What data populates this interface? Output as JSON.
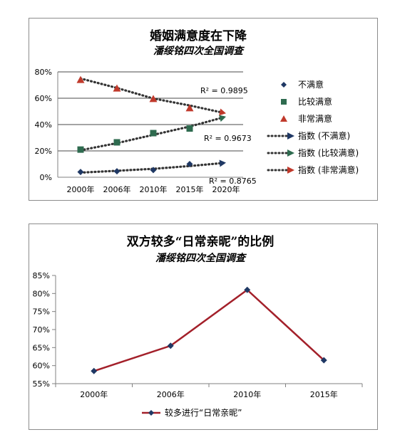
{
  "charts": [
    {
      "type": "scatter",
      "title": "婚姻满意度在下降",
      "subtitle": "潘绥铭四次全国调查",
      "categories": [
        "2000年",
        "2006年",
        "2010年",
        "2015年",
        "2020年"
      ],
      "ylim": [
        0,
        80
      ],
      "yticks": [
        "0%",
        "20%",
        "40%",
        "60%",
        "80%"
      ],
      "grid": true,
      "legend_position": "right",
      "series": [
        {
          "name": "不满意",
          "marker": "diamond",
          "color": "#1f3864",
          "values": [
            4,
            4.5,
            5.5,
            10,
            null
          ]
        },
        {
          "name": "比较满意",
          "marker": "square",
          "color": "#2e6b4f",
          "values": [
            21,
            26.5,
            33.5,
            37,
            null
          ]
        },
        {
          "name": "非常满意",
          "marker": "triangle",
          "color": "#c0392b",
          "values": [
            74,
            67.5,
            59.5,
            52.5,
            null
          ]
        }
      ],
      "trendlines": [
        {
          "name": "指数 (不满意)",
          "color": "#1f3864",
          "values": [
            3.5,
            4.9,
            6.4,
            8.5,
            11
          ],
          "r2": "R² = 0.8765",
          "r2_label": "R² = 0.8765"
        },
        {
          "name": "指数 (比较满意)",
          "color": "#2e6b4f",
          "values": [
            20.5,
            25.9,
            32.2,
            38.5,
            46
          ],
          "r2": "R² = 0.9673",
          "r2_label": "R² = 0.9673"
        },
        {
          "name": "指数 (非常满意)",
          "color": "#c0392b",
          "values": [
            75,
            67.8,
            59.8,
            54.5,
            48.5
          ],
          "r2": "R² = 0.9895",
          "r2_label": "R² = 0.9895"
        }
      ]
    },
    {
      "type": "line",
      "title": "双方较多“日常亲昵”的比例",
      "subtitle": "潘绥铭四次全国调查",
      "categories": [
        "2000年",
        "2006年",
        "2010年",
        "2015年"
      ],
      "ylim": [
        55,
        85
      ],
      "yticks": [
        "55%",
        "60%",
        "65%",
        "70%",
        "75%",
        "80%",
        "85%"
      ],
      "grid": false,
      "legend_position": "bottom",
      "series": [
        {
          "name": "较多进行“日常亲昵”",
          "color": "#a3202a",
          "marker_color": "#1f3864",
          "values": [
            58.5,
            65.5,
            81,
            61.5
          ]
        }
      ]
    }
  ]
}
